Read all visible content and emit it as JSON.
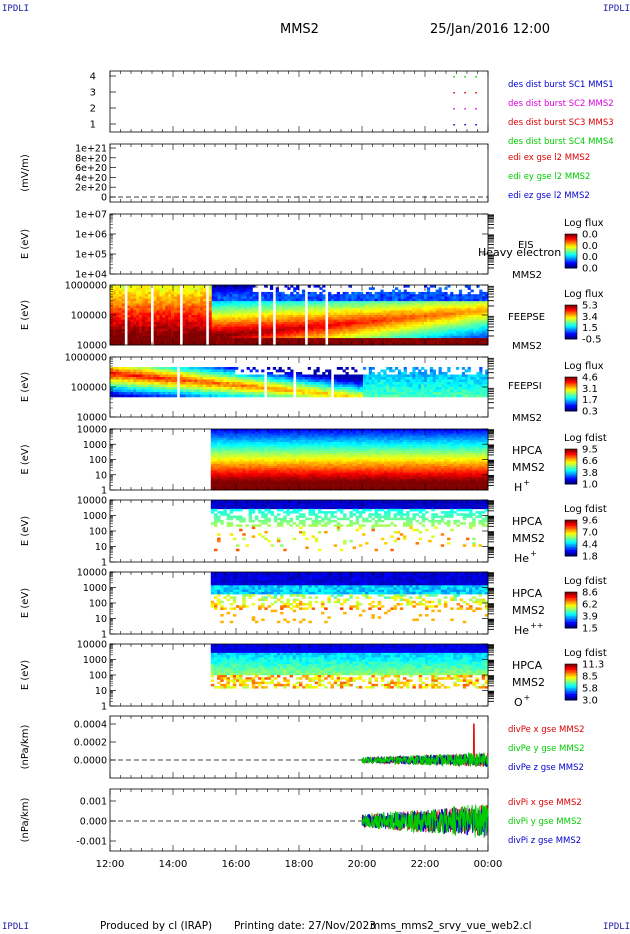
{
  "corner_label": "IPDLI",
  "header": {
    "spacecraft": "MMS2",
    "datetime": "25/Jan/2016 12:00"
  },
  "footer": {
    "produced_by": "Produced by cl (IRAP)",
    "printing_date": "Printing date: 27/Nov/2023",
    "script_name": "mms_mms2_srvy_vue_web2.cl"
  },
  "x_axis": {
    "ticks": [
      "12:00",
      "14:00",
      "16:00",
      "18:00",
      "20:00",
      "22:00",
      "00:00"
    ]
  },
  "colors": {
    "red": "#dd0000",
    "green": "#00cc00",
    "blue": "#0000cc",
    "magenta": "#dd00dd"
  },
  "chart_data": [
    {
      "type": "scatter",
      "panel": "burst",
      "yticks": [
        "4",
        "3",
        "2",
        "1"
      ],
      "series": [
        {
          "name": "des dist burst SC1 MMS1",
          "color": "#0000cc"
        },
        {
          "name": "des dist burst SC2 MMS2",
          "color": "#dd00dd"
        },
        {
          "name": "des dist burst SC3 MMS3",
          "color": "#dd0000"
        },
        {
          "name": "des dist burst SC4 MMS4",
          "color": "#00cc00"
        }
      ]
    },
    {
      "type": "line",
      "panel": "edi",
      "ylabel": "(mV/m)",
      "yticks": [
        "1e+21",
        "8e+20",
        "6e+20",
        "4e+20",
        "2e+20",
        "0"
      ],
      "series": [
        {
          "name": "edi ex gse l2 MMS2",
          "color": "#dd0000"
        },
        {
          "name": "edi ey gse l2 MMS2",
          "color": "#00cc00"
        },
        {
          "name": "edi ez gse l2 MMS2",
          "color": "#0000cc"
        }
      ]
    },
    {
      "type": "heatmap",
      "panel": "eis",
      "ylabel": "E (eV)",
      "yticks": [
        "1e+07",
        "1e+06",
        "1e+05",
        "1e+04"
      ],
      "instrument": "EIS",
      "spacecraft": "MMS2",
      "overlay_text": "Heavy electron to",
      "colorbar": {
        "title": "Log flux",
        "ticks": [
          "0.0",
          "0.0",
          "0.0",
          "0.0"
        ]
      }
    },
    {
      "type": "heatmap",
      "panel": "feepse",
      "ylabel": "E (eV)",
      "yticks": [
        "1000000",
        "100000",
        "10000"
      ],
      "instrument": "FEEPSE",
      "spacecraft": "MMS2",
      "colorbar": {
        "title": "Log flux",
        "ticks": [
          "5.3",
          "3.4",
          "1.5",
          "-0.5"
        ]
      }
    },
    {
      "type": "heatmap",
      "panel": "feepsi",
      "ylabel": "E (eV)",
      "yticks": [
        "1000000",
        "100000",
        "10000"
      ],
      "instrument": "FEEPSI",
      "spacecraft": "MMS2",
      "colorbar": {
        "title": "Log flux",
        "ticks": [
          "4.6",
          "3.1",
          "1.7",
          "0.3"
        ]
      }
    },
    {
      "type": "heatmap",
      "panel": "hpca_h",
      "ylabel": "E (eV)",
      "yticks": [
        "10000",
        "1000",
        "100",
        "10",
        "1"
      ],
      "instrument": "HPCA",
      "spacecraft": "MMS2",
      "species": "H",
      "charge": "+",
      "colorbar": {
        "title": "Log fdist",
        "ticks": [
          "9.5",
          "6.6",
          "3.8",
          "1.0"
        ]
      }
    },
    {
      "type": "heatmap",
      "panel": "hpca_he1",
      "ylabel": "E (eV)",
      "yticks": [
        "10000",
        "1000",
        "100",
        "10",
        "1"
      ],
      "instrument": "HPCA",
      "spacecraft": "MMS2",
      "species": "He",
      "charge": "+",
      "colorbar": {
        "title": "Log fdist",
        "ticks": [
          "9.6",
          "7.0",
          "4.4",
          "1.8"
        ]
      }
    },
    {
      "type": "heatmap",
      "panel": "hpca_he2",
      "ylabel": "E (eV)",
      "yticks": [
        "10000",
        "1000",
        "100",
        "10",
        "1"
      ],
      "instrument": "HPCA",
      "spacecraft": "MMS2",
      "species": "He",
      "charge": "++",
      "colorbar": {
        "title": "Log fdist",
        "ticks": [
          "8.6",
          "6.2",
          "3.9",
          "1.5"
        ]
      }
    },
    {
      "type": "heatmap",
      "panel": "hpca_o",
      "ylabel": "E (eV)",
      "yticks": [
        "10000",
        "1000",
        "100",
        "10",
        "1"
      ],
      "instrument": "HPCA",
      "spacecraft": "MMS2",
      "species": "O",
      "charge": "+",
      "colorbar": {
        "title": "Log fdist",
        "ticks": [
          "11.3",
          "8.5",
          "5.8",
          "3.0"
        ]
      }
    },
    {
      "type": "line",
      "panel": "divpe",
      "ylabel": "(nPa/km)",
      "yticks": [
        "0.0004",
        "0.0002",
        "0.0000"
      ],
      "series": [
        {
          "name": "divPe x gse MMS2",
          "color": "#dd0000"
        },
        {
          "name": "divPe y gse MMS2",
          "color": "#00cc00"
        },
        {
          "name": "divPe z gse MMS2",
          "color": "#0000cc"
        }
      ]
    },
    {
      "type": "line",
      "panel": "divpi",
      "ylabel": "(nPa/km)",
      "yticks": [
        "0.001",
        "0.000",
        "-0.001"
      ],
      "series": [
        {
          "name": "divPi x gse MMS2",
          "color": "#dd0000"
        },
        {
          "name": "divPi y gse MMS2",
          "color": "#00cc00"
        },
        {
          "name": "divPi z gse MMS2",
          "color": "#0000cc"
        }
      ]
    }
  ]
}
